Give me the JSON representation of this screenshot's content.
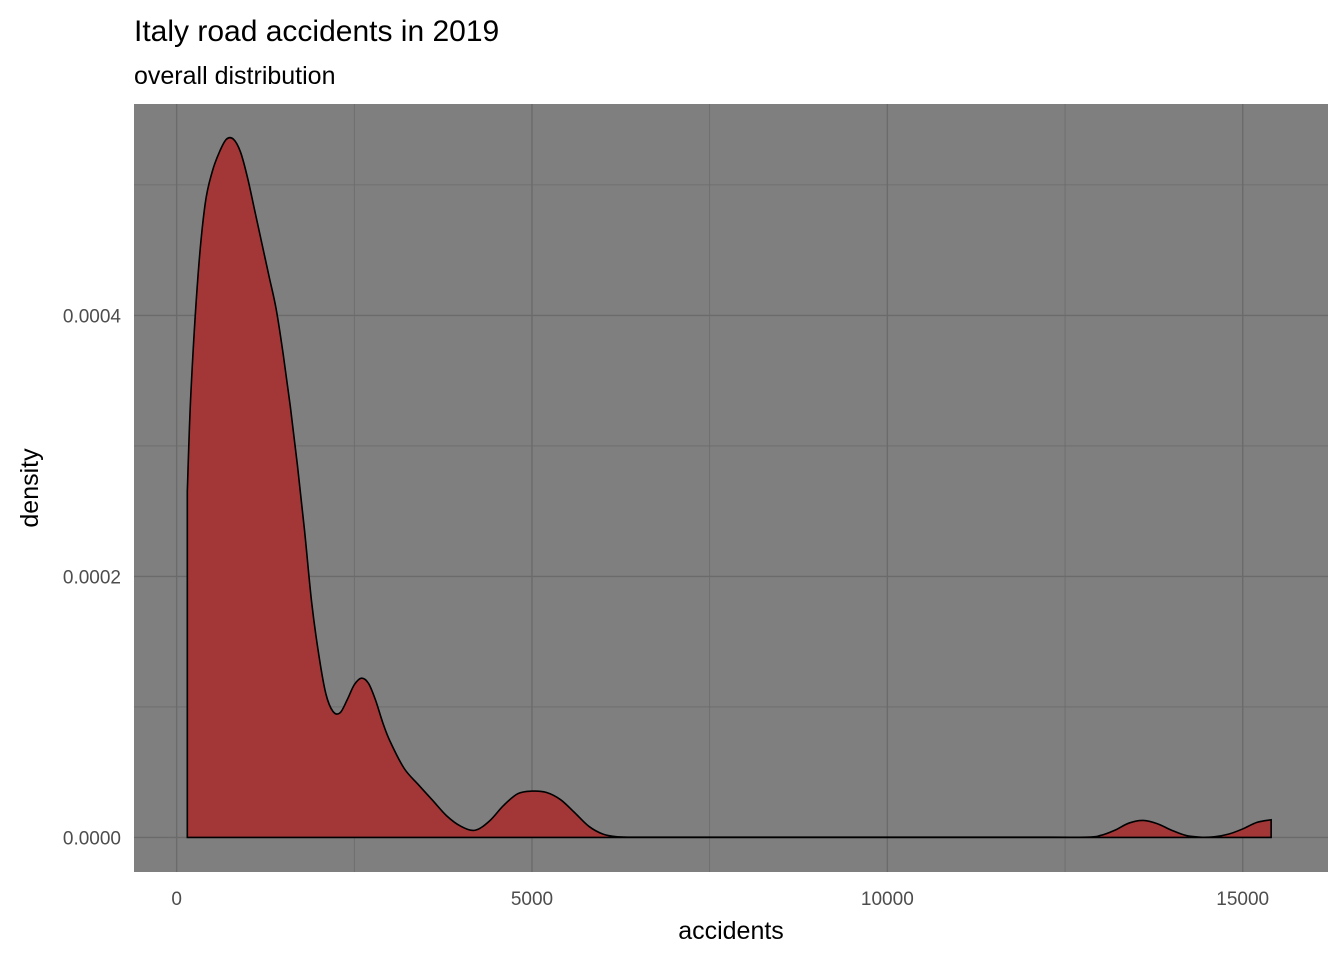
{
  "chart_data": {
    "type": "area",
    "title": "Italy road accidents in 2019",
    "subtitle": "overall distribution",
    "xlabel": "accidents",
    "ylabel": "density",
    "xlim": [
      -600,
      16200
    ],
    "ylim": [
      -2.65e-05,
      0.000562
    ],
    "x_ticks": [
      0,
      5000,
      10000,
      15000
    ],
    "x_tick_labels": [
      "0",
      "5000",
      "10000",
      "15000"
    ],
    "y_ticks": [
      0.0,
      0.0002,
      0.0004
    ],
    "y_tick_labels": [
      "0.0000",
      "0.0002",
      "0.0004"
    ],
    "x_minor": [
      2500,
      7500,
      12500
    ],
    "y_minor": [
      0.0001,
      0.0003,
      0.0005
    ],
    "grid": true,
    "legend": "none",
    "colors": {
      "panel_background": "#7f7f7f",
      "grid_line": "#6b6b6b",
      "fill": "#a33636",
      "outline": "#000000"
    },
    "series": [
      {
        "x": [
          150,
          200,
          300,
          400,
          500,
          600,
          700,
          800,
          900,
          1000,
          1100,
          1200,
          1300,
          1400,
          1500,
          1600,
          1700,
          1800,
          1900,
          2000,
          2100,
          2200,
          2300,
          2400,
          2500,
          2600,
          2700,
          2800,
          2900,
          3000,
          3200,
          3400,
          3600,
          3800,
          4000,
          4200,
          4400,
          4600,
          4800,
          5000,
          5200,
          5400,
          5600,
          5800,
          6000,
          6200,
          6500,
          7000,
          8000,
          9000,
          10000,
          11000,
          12000,
          12800,
          13000,
          13200,
          13400,
          13600,
          13800,
          14000,
          14200,
          14400,
          14600,
          14800,
          15000,
          15200,
          15400
        ],
        "y": [
          0.000265,
          0.00034,
          0.00043,
          0.000485,
          0.00051,
          0.000525,
          0.000535,
          0.000535,
          0.000525,
          0.000505,
          0.00048,
          0.000455,
          0.00043,
          0.000405,
          0.00037,
          0.00033,
          0.000285,
          0.000235,
          0.00018,
          0.00014,
          0.00011,
          9.65e-05,
          9.55e-05,
          0.0001055,
          0.000117,
          0.000122,
          0.000118,
          0.000105,
          8.8e-05,
          7.4e-05,
          5.3e-05,
          4.05e-05,
          2.85e-05,
          1.65e-05,
          8.5e-06,
          5.5e-06,
          1.25e-05,
          2.45e-05,
          3.35e-05,
          3.55e-05,
          3.45e-05,
          2.9e-05,
          1.9e-05,
          8.5e-06,
          2.5e-06,
          5e-07,
          2e-07,
          2e-07,
          2e-07,
          2e-07,
          2e-07,
          2e-07,
          2e-07,
          2e-07,
          1.5e-06,
          5.5e-06,
          1.1e-05,
          1.3e-05,
          1.05e-05,
          5.5e-06,
          1.5e-06,
          2e-07,
          5e-07,
          2.5e-06,
          6.5e-06,
          1.15e-05,
          1.35e-05
        ]
      }
    ]
  }
}
